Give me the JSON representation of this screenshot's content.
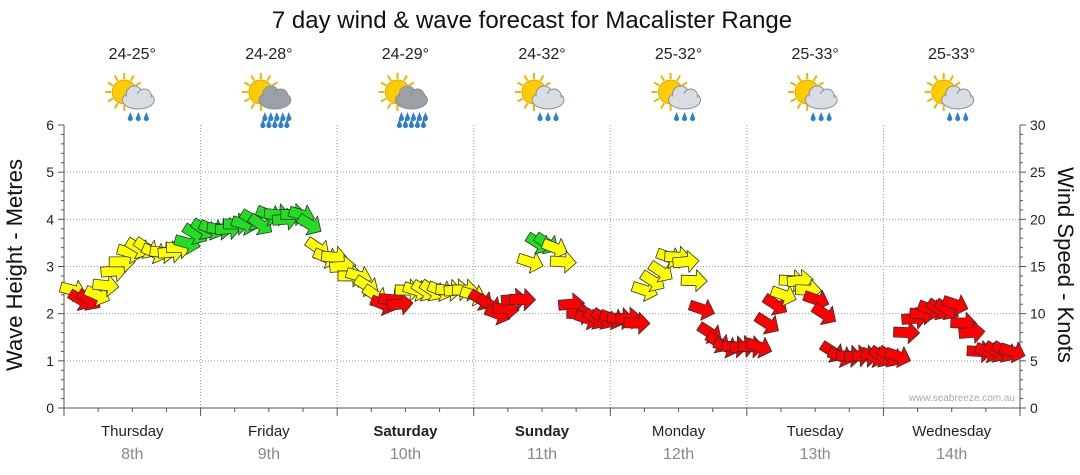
{
  "chart_data": {
    "type": "line",
    "title": "7 day wind & wave forecast for Macalister Range",
    "ylabel": "Wave Height - Metres",
    "y2label": "Wind Speed - Knots",
    "ylim": [
      0,
      6
    ],
    "y2lim": [
      0,
      30
    ],
    "yticks": [
      "0",
      "1",
      "2",
      "3",
      "4",
      "5",
      "6"
    ],
    "y2ticks": [
      "0",
      "5",
      "10",
      "15",
      "20",
      "25",
      "30"
    ],
    "credit": "www.seabreeze.com.au",
    "days": [
      {
        "name": "Thursday",
        "date": "8th",
        "temp": "24-25°",
        "icon": "partly-cloudy-rain-icon",
        "bold": false
      },
      {
        "name": "Friday",
        "date": "9th",
        "temp": "24-28°",
        "icon": "storm-rain-icon",
        "bold": false
      },
      {
        "name": "Saturday",
        "date": "10th",
        "temp": "24-29°",
        "icon": "storm-rain-icon",
        "bold": true
      },
      {
        "name": "Sunday",
        "date": "11th",
        "temp": "24-32°",
        "icon": "partly-cloudy-rain-icon",
        "bold": true
      },
      {
        "name": "Monday",
        "date": "12th",
        "temp": "25-32°",
        "icon": "partly-cloudy-rain-icon",
        "bold": false
      },
      {
        "name": "Tuesday",
        "date": "13th",
        "temp": "25-33°",
        "icon": "partly-cloudy-rain-icon",
        "bold": false
      },
      {
        "name": "Wednesday",
        "date": "14th",
        "temp": "25-33°",
        "icon": "partly-cloudy-rain-icon",
        "bold": false
      }
    ],
    "series": [
      {
        "name": "Wind Speed (knots)",
        "unit": "knots",
        "values": [
          12.5,
          11.5,
          11.5,
          12,
          13,
          14.5,
          15.5,
          16.5,
          17,
          17,
          16.5,
          16.5,
          16.5,
          17,
          17.5,
          18.5,
          19,
          19,
          19,
          19,
          19.5,
          19.5,
          20,
          19.5,
          20.5,
          20.5,
          20,
          20.5,
          20.5,
          19.5,
          17,
          16,
          16,
          15,
          14,
          14,
          13,
          12,
          11,
          11.5,
          11,
          12.5,
          12.5,
          12.5,
          12.5,
          12.5,
          12.5,
          12.5,
          12.5,
          12,
          11.5,
          11,
          10,
          10.5,
          11.5,
          11.5,
          15.5,
          17.5,
          17.5,
          17,
          15.5,
          11,
          10,
          9.5,
          9.5,
          9.5,
          9.5,
          9.5,
          9.5,
          9,
          12.5,
          13.5,
          14.5,
          16,
          16,
          15.5,
          13.5,
          10.5,
          8,
          7,
          6.5,
          6.5,
          6.5,
          6.5,
          6.5,
          9,
          11,
          12,
          13.5,
          13.5,
          12.5,
          11.5,
          10,
          6,
          5.5,
          5.5,
          5.5,
          5.5,
          5.5,
          5.5,
          5.5,
          5.5,
          8,
          9.5,
          10,
          10.5,
          10.5,
          10.5,
          11,
          9,
          8,
          6,
          6,
          6,
          6,
          6
        ]
      }
    ],
    "colors": {
      "low": "#ff0000",
      "mid": "#ffff00",
      "high": "#22dd22"
    },
    "direction_note": "arrows point in wind direction; mostly from the south-west to west"
  }
}
